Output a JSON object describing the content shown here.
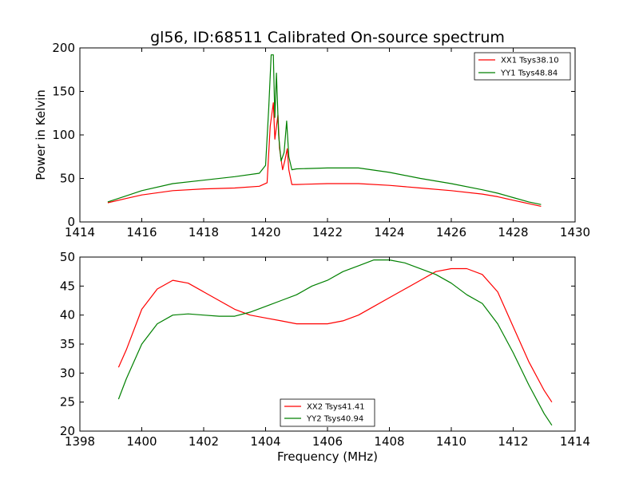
{
  "chart_data": [
    {
      "type": "line",
      "title": "gl56, ID:68511 Calibrated On-source spectrum",
      "xlabel": "",
      "ylabel": "Power in Kelvin",
      "xlim": [
        1414,
        1430
      ],
      "ylim": [
        0,
        200
      ],
      "xticks": [
        "1414",
        "1416",
        "1418",
        "1420",
        "1422",
        "1424",
        "1426",
        "1428",
        "1430"
      ],
      "yticks": [
        "0",
        "50",
        "100",
        "150",
        "200"
      ],
      "grid": false,
      "legend_position": "top-right",
      "series": [
        {
          "name": "XX1 Tsys38.10",
          "color": "#ff0000",
          "x": [
            1414.9,
            1415.5,
            1416.0,
            1417.0,
            1418.0,
            1419.0,
            1419.8,
            1420.05,
            1420.15,
            1420.25,
            1420.3,
            1420.4,
            1420.45,
            1420.55,
            1420.62,
            1420.7,
            1420.75,
            1420.85,
            1421.0,
            1422.0,
            1423.0,
            1424.0,
            1425.0,
            1426.0,
            1427.0,
            1427.5,
            1428.0,
            1428.5,
            1428.9
          ],
          "y": [
            22,
            27,
            31,
            36,
            38,
            39,
            41,
            45,
            110,
            137,
            95,
            123,
            85,
            60,
            70,
            84,
            60,
            43,
            43,
            44,
            44,
            42,
            39,
            36,
            32,
            29,
            25,
            21,
            18
          ]
        },
        {
          "name": "YY1 Tsys48.84",
          "color": "#008000",
          "x": [
            1414.9,
            1415.5,
            1416.0,
            1417.0,
            1418.0,
            1419.0,
            1419.8,
            1420.0,
            1420.1,
            1420.18,
            1420.25,
            1420.3,
            1420.35,
            1420.42,
            1420.5,
            1420.6,
            1420.68,
            1420.75,
            1420.85,
            1421.0,
            1422.0,
            1423.0,
            1424.0,
            1425.0,
            1426.0,
            1427.0,
            1427.5,
            1428.0,
            1428.5,
            1428.9
          ],
          "y": [
            23,
            30,
            36,
            44,
            48,
            52,
            56,
            65,
            130,
            192,
            192,
            120,
            171,
            100,
            70,
            80,
            116,
            75,
            60,
            61,
            62,
            62,
            57,
            50,
            44,
            37,
            33,
            28,
            23,
            20
          ]
        }
      ]
    },
    {
      "type": "line",
      "title": "",
      "xlabel": "Frequency (MHz)",
      "ylabel": "",
      "xlim": [
        1398,
        1414
      ],
      "ylim": [
        20,
        50
      ],
      "xticks": [
        "1398",
        "1400",
        "1402",
        "1404",
        "1406",
        "1408",
        "1410",
        "1412",
        "1414"
      ],
      "yticks": [
        "20",
        "25",
        "30",
        "35",
        "40",
        "45",
        "50"
      ],
      "grid": false,
      "legend_position": "bottom-center",
      "series": [
        {
          "name": "XX2 Tsys41.41",
          "color": "#ff0000",
          "x": [
            1399.25,
            1399.5,
            1400.0,
            1400.5,
            1401.0,
            1401.5,
            1402.0,
            1402.5,
            1403.0,
            1403.5,
            1404.0,
            1404.5,
            1405.0,
            1405.5,
            1406.0,
            1406.5,
            1407.0,
            1407.5,
            1408.0,
            1408.5,
            1409.0,
            1409.5,
            1410.0,
            1410.5,
            1411.0,
            1411.5,
            1412.0,
            1412.5,
            1413.0,
            1413.25
          ],
          "y": [
            31,
            34,
            41,
            44.5,
            46,
            45.5,
            44,
            42.5,
            41,
            40,
            39.5,
            39,
            38.5,
            38.5,
            38.5,
            39,
            40,
            41.5,
            43,
            44.5,
            46,
            47.5,
            48,
            48,
            47,
            44,
            38,
            32,
            27,
            25
          ]
        },
        {
          "name": "YY2 Tsys40.94",
          "color": "#008000",
          "x": [
            1399.25,
            1399.5,
            1400.0,
            1400.5,
            1401.0,
            1401.5,
            1402.0,
            1402.5,
            1403.0,
            1403.5,
            1404.0,
            1404.5,
            1405.0,
            1405.5,
            1406.0,
            1406.5,
            1407.0,
            1407.5,
            1408.0,
            1408.5,
            1409.0,
            1409.5,
            1410.0,
            1410.5,
            1411.0,
            1411.5,
            1412.0,
            1412.5,
            1413.0,
            1413.25
          ],
          "y": [
            25.5,
            29,
            35,
            38.5,
            40,
            40.2,
            40,
            39.8,
            39.8,
            40.5,
            41.5,
            42.5,
            43.5,
            45,
            46,
            47.5,
            48.5,
            49.5,
            49.5,
            49,
            48,
            47,
            45.5,
            43.5,
            42,
            38.5,
            33.5,
            28,
            23,
            21
          ]
        }
      ]
    }
  ]
}
